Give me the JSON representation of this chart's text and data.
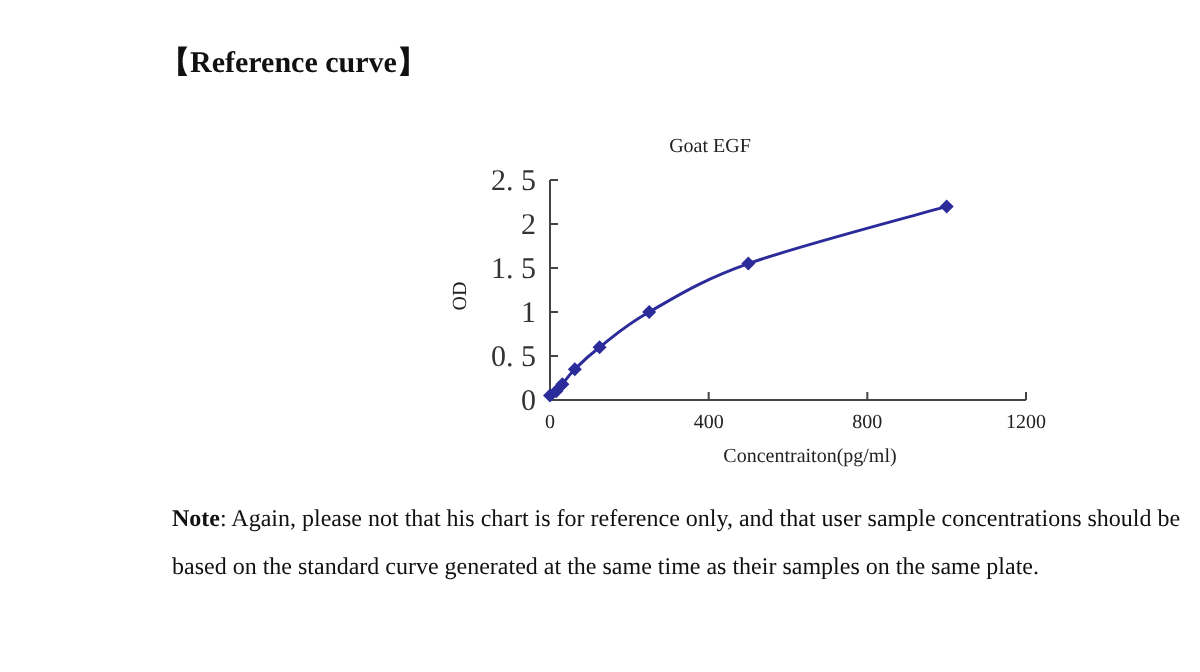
{
  "chart_data": {
    "type": "line",
    "title": "Goat EGF",
    "xlabel": "Concentraiton(pg/ml)",
    "ylabel": "OD",
    "annotations": [
      "【Reference curve】",
      "**Note**: Again, please not that his chart is for reference only, and that user sample concentrations should be based on the standard curve generated at the same time as their samples on the same plate."
    ],
    "series": [
      {
        "color": "#2b2b9a",
        "x": [
          0,
          15.6,
          31.25,
          62.5,
          125,
          250,
          500,
          1000
        ],
        "values": [
          0.05,
          0.1,
          0.18,
          0.35,
          0.6,
          1.0,
          1.55,
          2.2
        ]
      }
    ],
    "xlim": [
      0,
      1200
    ],
    "xticks": [
      0,
      400,
      800,
      1200
    ],
    "ylim": [
      0,
      2.5
    ],
    "yticks": [
      0,
      {
        "value": 0.5,
        "label": "0. 5"
      },
      1,
      {
        "value": 1.5,
        "label": "1. 5"
      },
      2,
      {
        "value": 2.5,
        "label": "2. 5"
      }
    ],
    "marker": "diamond"
  }
}
